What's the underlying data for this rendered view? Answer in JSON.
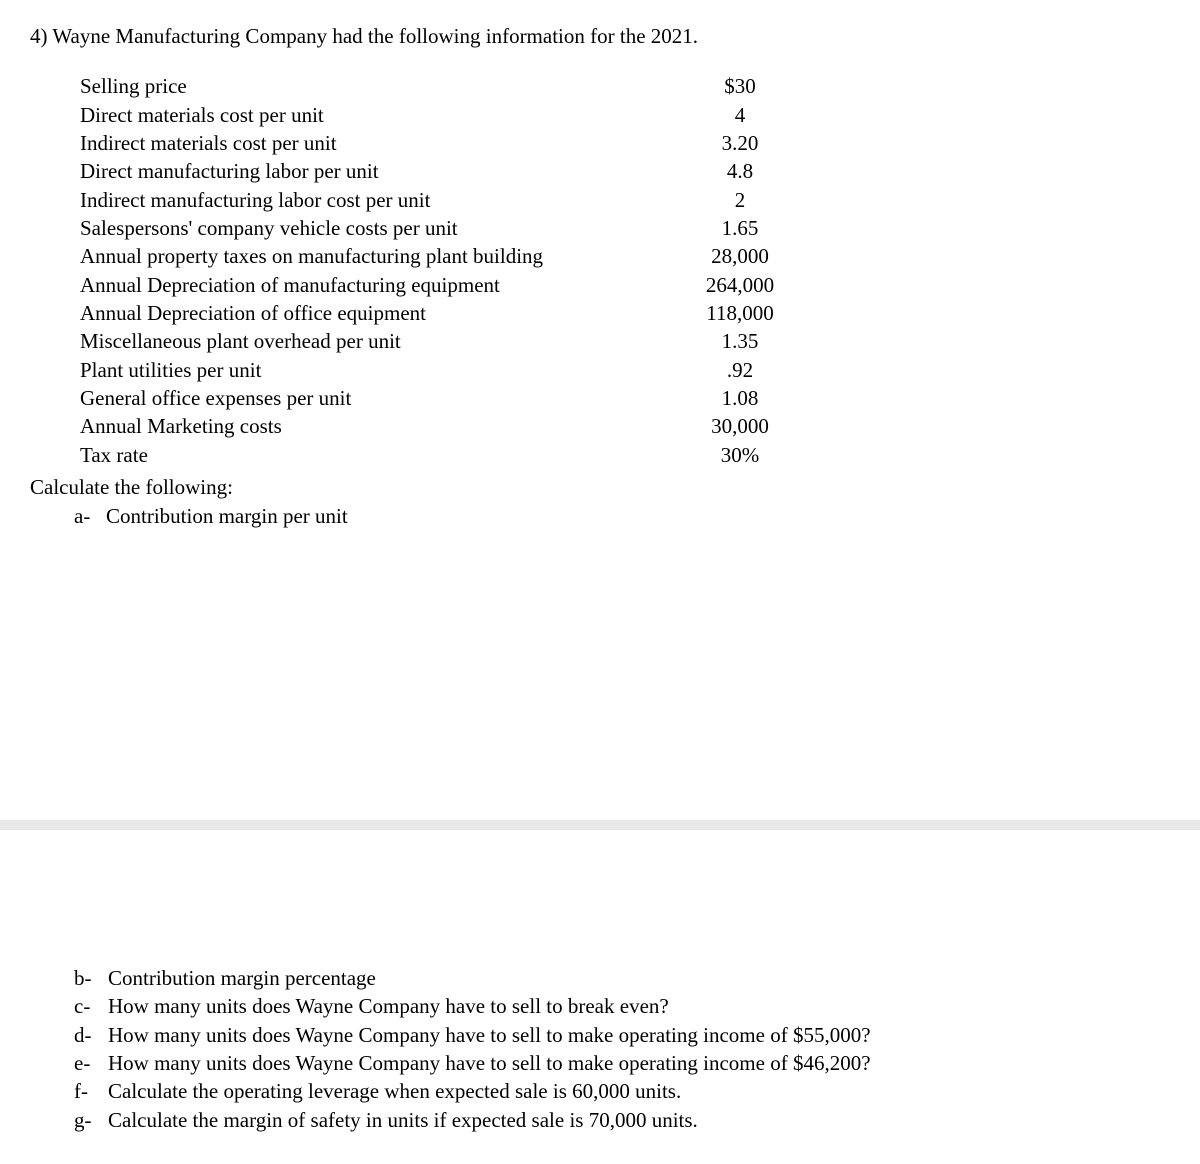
{
  "question_title": "4) Wayne Manufacturing Company had the following information for the 2021.",
  "data_rows": [
    {
      "label": "Selling price",
      "value": "$30"
    },
    {
      "label": "Direct materials cost per unit",
      "value": "4"
    },
    {
      "label": "Indirect materials cost per unit",
      "value": "3.20"
    },
    {
      "label": "Direct manufacturing labor per unit",
      "value": "4.8"
    },
    {
      "label": "Indirect manufacturing labor cost per unit",
      "value": "2"
    },
    {
      "label": "Salespersons' company vehicle costs per unit",
      "value": "1.65"
    },
    {
      "label": "Annual property taxes on manufacturing plant building",
      "value": "28,000"
    },
    {
      "label": "Annual Depreciation of manufacturing equipment",
      "value": "264,000"
    },
    {
      "label": "Annual Depreciation of office equipment",
      "value": "118,000"
    },
    {
      "label": "Miscellaneous plant overhead per unit",
      "value": "1.35"
    },
    {
      "label": "Plant utilities per unit",
      "value": ".92"
    },
    {
      "label": "General office expenses per unit",
      "value": "1.08"
    },
    {
      "label": "Annual Marketing costs",
      "value": "30,000"
    },
    {
      "label": "Tax rate",
      "value": "30%"
    }
  ],
  "calc_title": "Calculate the following:",
  "sub_a": {
    "letter": "a-",
    "text": "Contribution margin per unit"
  },
  "sub_rest": [
    {
      "letter": "b-",
      "text": "Contribution margin percentage"
    },
    {
      "letter": "c-",
      "text": "How many units does Wayne Company have to sell to break even?"
    },
    {
      "letter": "d-",
      "text": "How many units does Wayne Company have to sell to make operating income of $55,000?"
    },
    {
      "letter": "e-",
      "text": "How many units does Wayne Company have to sell to make operating income of $46,200?"
    },
    {
      "letter": "f-",
      "text": "Calculate the operating leverage when expected sale is 60,000 units."
    },
    {
      "letter": "g-",
      "text": "Calculate the margin of safety in units if expected sale is 70,000 units."
    }
  ]
}
